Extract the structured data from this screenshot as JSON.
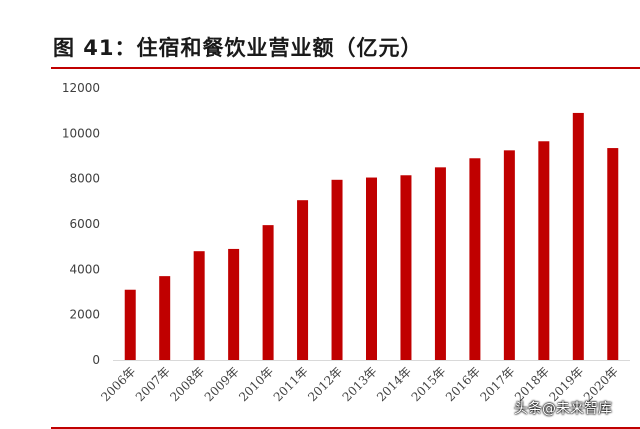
{
  "figure": {
    "title": "图 41：住宿和餐饮业营业额（亿元）",
    "accent_color": "#c00000",
    "watermark": "头条@未来智库"
  },
  "chart_data": {
    "type": "bar",
    "title": "图 41：住宿和餐饮业营业额（亿元）",
    "categories": [
      "2006年",
      "2007年",
      "2008年",
      "2009年",
      "2010年",
      "2011年",
      "2012年",
      "2013年",
      "2014年",
      "2015年",
      "2016年",
      "2017年",
      "2018年",
      "2019年",
      "2020年"
    ],
    "values": [
      3100,
      3700,
      4800,
      4900,
      5950,
      7050,
      7950,
      8050,
      8150,
      8500,
      8900,
      9250,
      9650,
      10900,
      9350
    ],
    "ylim": [
      0,
      12000
    ],
    "yticks": [
      0,
      2000,
      4000,
      6000,
      8000,
      10000,
      12000
    ],
    "xlabel": "",
    "ylabel": "",
    "bar_color": "#c00000",
    "grid": false,
    "legend": "none"
  }
}
